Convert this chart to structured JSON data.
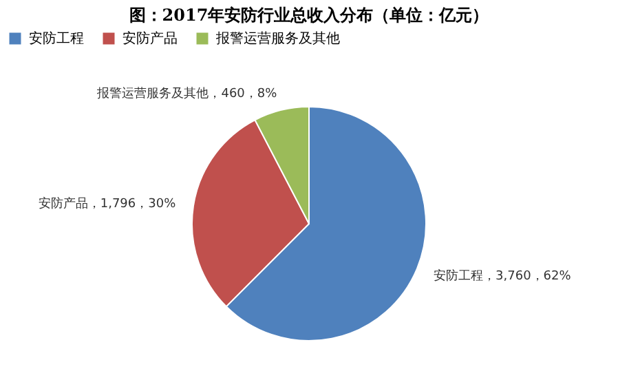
{
  "chart_data": {
    "type": "pie",
    "title": "图：2017年安防行业总收入分布（单位：亿元）",
    "categories": [
      "安防工程",
      "安防产品",
      "报警运营服务及其他"
    ],
    "values": [
      3760,
      1796,
      460
    ],
    "colors": [
      "#4f81bd",
      "#c0504d",
      "#9bbb59"
    ],
    "value_labels": [
      "安防工程，3,760，62%",
      "安防产品，1,796，30%",
      "报警运营服务及其他，460，8%"
    ],
    "legend": "top"
  }
}
